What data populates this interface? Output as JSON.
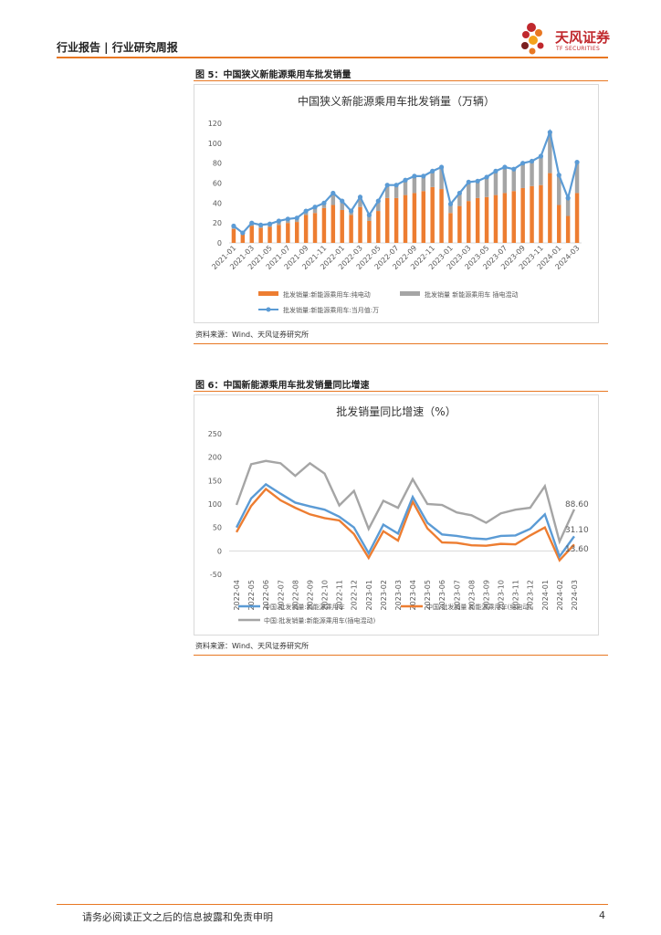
{
  "header": {
    "left_text": "行业报告 | 行业研究周报",
    "logo_text": "天风证券",
    "logo_sub": "TF SECURITIES"
  },
  "colors": {
    "accent": "#e87722",
    "blue": "#5b9bd5",
    "orange": "#ed7d31",
    "gray": "#a5a5a5",
    "logo_red": "#c0282d"
  },
  "figures": [
    {
      "label": "图 5：中国狭义新能源乘用车批发销量",
      "source": "资料来源：Wind、天风证券研究所"
    },
    {
      "label": "图 6：中国新能源乘用车批发销量同比增速",
      "source": "资料来源：Wind、天风证券研究所"
    }
  ],
  "chart_data": [
    {
      "type": "bar",
      "title": "中国狭义新能源乘用车批发销量（万辆）",
      "ylim": [
        0,
        120
      ],
      "yticks": [
        "0",
        "20",
        "40",
        "60",
        "80",
        "100",
        "120"
      ],
      "categories": [
        "2021-01",
        "2021-02",
        "2021-03",
        "2021-04",
        "2021-05",
        "2021-06",
        "2021-07",
        "2021-08",
        "2021-09",
        "2021-10",
        "2021-11",
        "2021-12",
        "2022-01",
        "2022-02",
        "2022-03",
        "2022-04",
        "2022-05",
        "2022-06",
        "2022-07",
        "2022-08",
        "2022-09",
        "2022-10",
        "2022-11",
        "2022-12",
        "2023-01",
        "2023-02",
        "2023-03",
        "2023-04",
        "2023-05",
        "2023-06",
        "2023-07",
        "2023-08",
        "2023-09",
        "2023-10",
        "2023-11",
        "2023-12",
        "2024-01",
        "2024-02",
        "2024-03"
      ],
      "xtick_labels": [
        "2021-01",
        "2021-03",
        "2021-05",
        "2021-07",
        "2021-09",
        "2021-11",
        "2022-01",
        "2022-03",
        "2022-05",
        "2022-07",
        "2022-09",
        "2022-11",
        "2023-01",
        "2023-03",
        "2023-05",
        "2023-07",
        "2023-09",
        "2023-11",
        "2024-01",
        "2024-03"
      ],
      "series": [
        {
          "name": "批发销量:新能源乘用车:纯电动",
          "kind": "bar",
          "color": "#ed7d31",
          "values": [
            14,
            9,
            17,
            15,
            16,
            18,
            20,
            21,
            28,
            30,
            35,
            38,
            33,
            28,
            36,
            22,
            32,
            45,
            45,
            48,
            50,
            52,
            56,
            54,
            30,
            37,
            42,
            45,
            46,
            48,
            50,
            52,
            55,
            57,
            58,
            70,
            38,
            27,
            50
          ]
        },
        {
          "name": "批发销量 新能源乘用车 插电混动",
          "kind": "bar",
          "color": "#a5a5a5",
          "values": [
            3,
            1,
            3,
            3,
            3,
            4,
            4,
            4,
            4,
            6,
            5,
            12,
            9,
            4,
            10,
            6,
            10,
            13,
            13,
            15,
            17,
            15,
            16,
            22,
            9,
            13,
            19,
            17,
            20,
            24,
            26,
            22,
            25,
            25,
            29,
            41,
            30,
            18,
            31
          ]
        },
        {
          "name": "批发销量:新能源乘用车:当月值:万",
          "kind": "line",
          "color": "#5b9bd5",
          "values": [
            17,
            10,
            20,
            18,
            19,
            22,
            24,
            25,
            32,
            36,
            40,
            50,
            42,
            32,
            46,
            28,
            42,
            58,
            58,
            63,
            67,
            67,
            72,
            76,
            39,
            50,
            61,
            62,
            66,
            72,
            76,
            74,
            80,
            82,
            87,
            111,
            68,
            45,
            81
          ]
        }
      ]
    },
    {
      "type": "line",
      "title": "批发销量同比增速（%）",
      "ylim": [
        -50,
        250
      ],
      "yticks": [
        "-50",
        "0",
        "50",
        "100",
        "150",
        "200",
        "250"
      ],
      "categories": [
        "2022-04",
        "2022-05",
        "2022-06",
        "2022-07",
        "2022-08",
        "2022-09",
        "2022-10",
        "2022-11",
        "2022-12",
        "2023-01",
        "2023-02",
        "2023-03",
        "2023-04",
        "2023-05",
        "2023-06",
        "2023-07",
        "2023-08",
        "2023-09",
        "2023-10",
        "2023-11",
        "2023-12",
        "2024-01",
        "2024-02",
        "2024-03"
      ],
      "series": [
        {
          "name": "中国:批发销量:新能源乘用车",
          "color": "#5b9bd5",
          "values": [
            50,
            112,
            142,
            122,
            103,
            95,
            88,
            73,
            50,
            -5,
            56,
            37,
            115,
            60,
            35,
            32,
            27,
            25,
            32,
            33,
            47,
            78,
            -12,
            31.1
          ]
        },
        {
          "name": "中国:批发销量 新能源乘用车(纯电动)",
          "color": "#ed7d31",
          "values": [
            40,
            96,
            132,
            108,
            92,
            78,
            70,
            65,
            36,
            -15,
            42,
            22,
            105,
            48,
            18,
            17,
            12,
            11,
            15,
            14,
            33,
            50,
            -20,
            13.6
          ]
        },
        {
          "name": "中国:批发销量:新能源乘用车(插电混动)",
          "color": "#a5a5a5",
          "values": [
            98,
            185,
            192,
            187,
            160,
            187,
            165,
            97,
            128,
            47,
            107,
            92,
            153,
            100,
            98,
            82,
            76,
            60,
            80,
            88,
            92,
            138,
            20,
            88.6
          ]
        }
      ],
      "end_labels": [
        "88.60",
        "31.10",
        "13.60"
      ]
    }
  ],
  "footer": {
    "disclaimer": "请务必阅读正文之后的信息披露和免责申明",
    "page": "4"
  }
}
